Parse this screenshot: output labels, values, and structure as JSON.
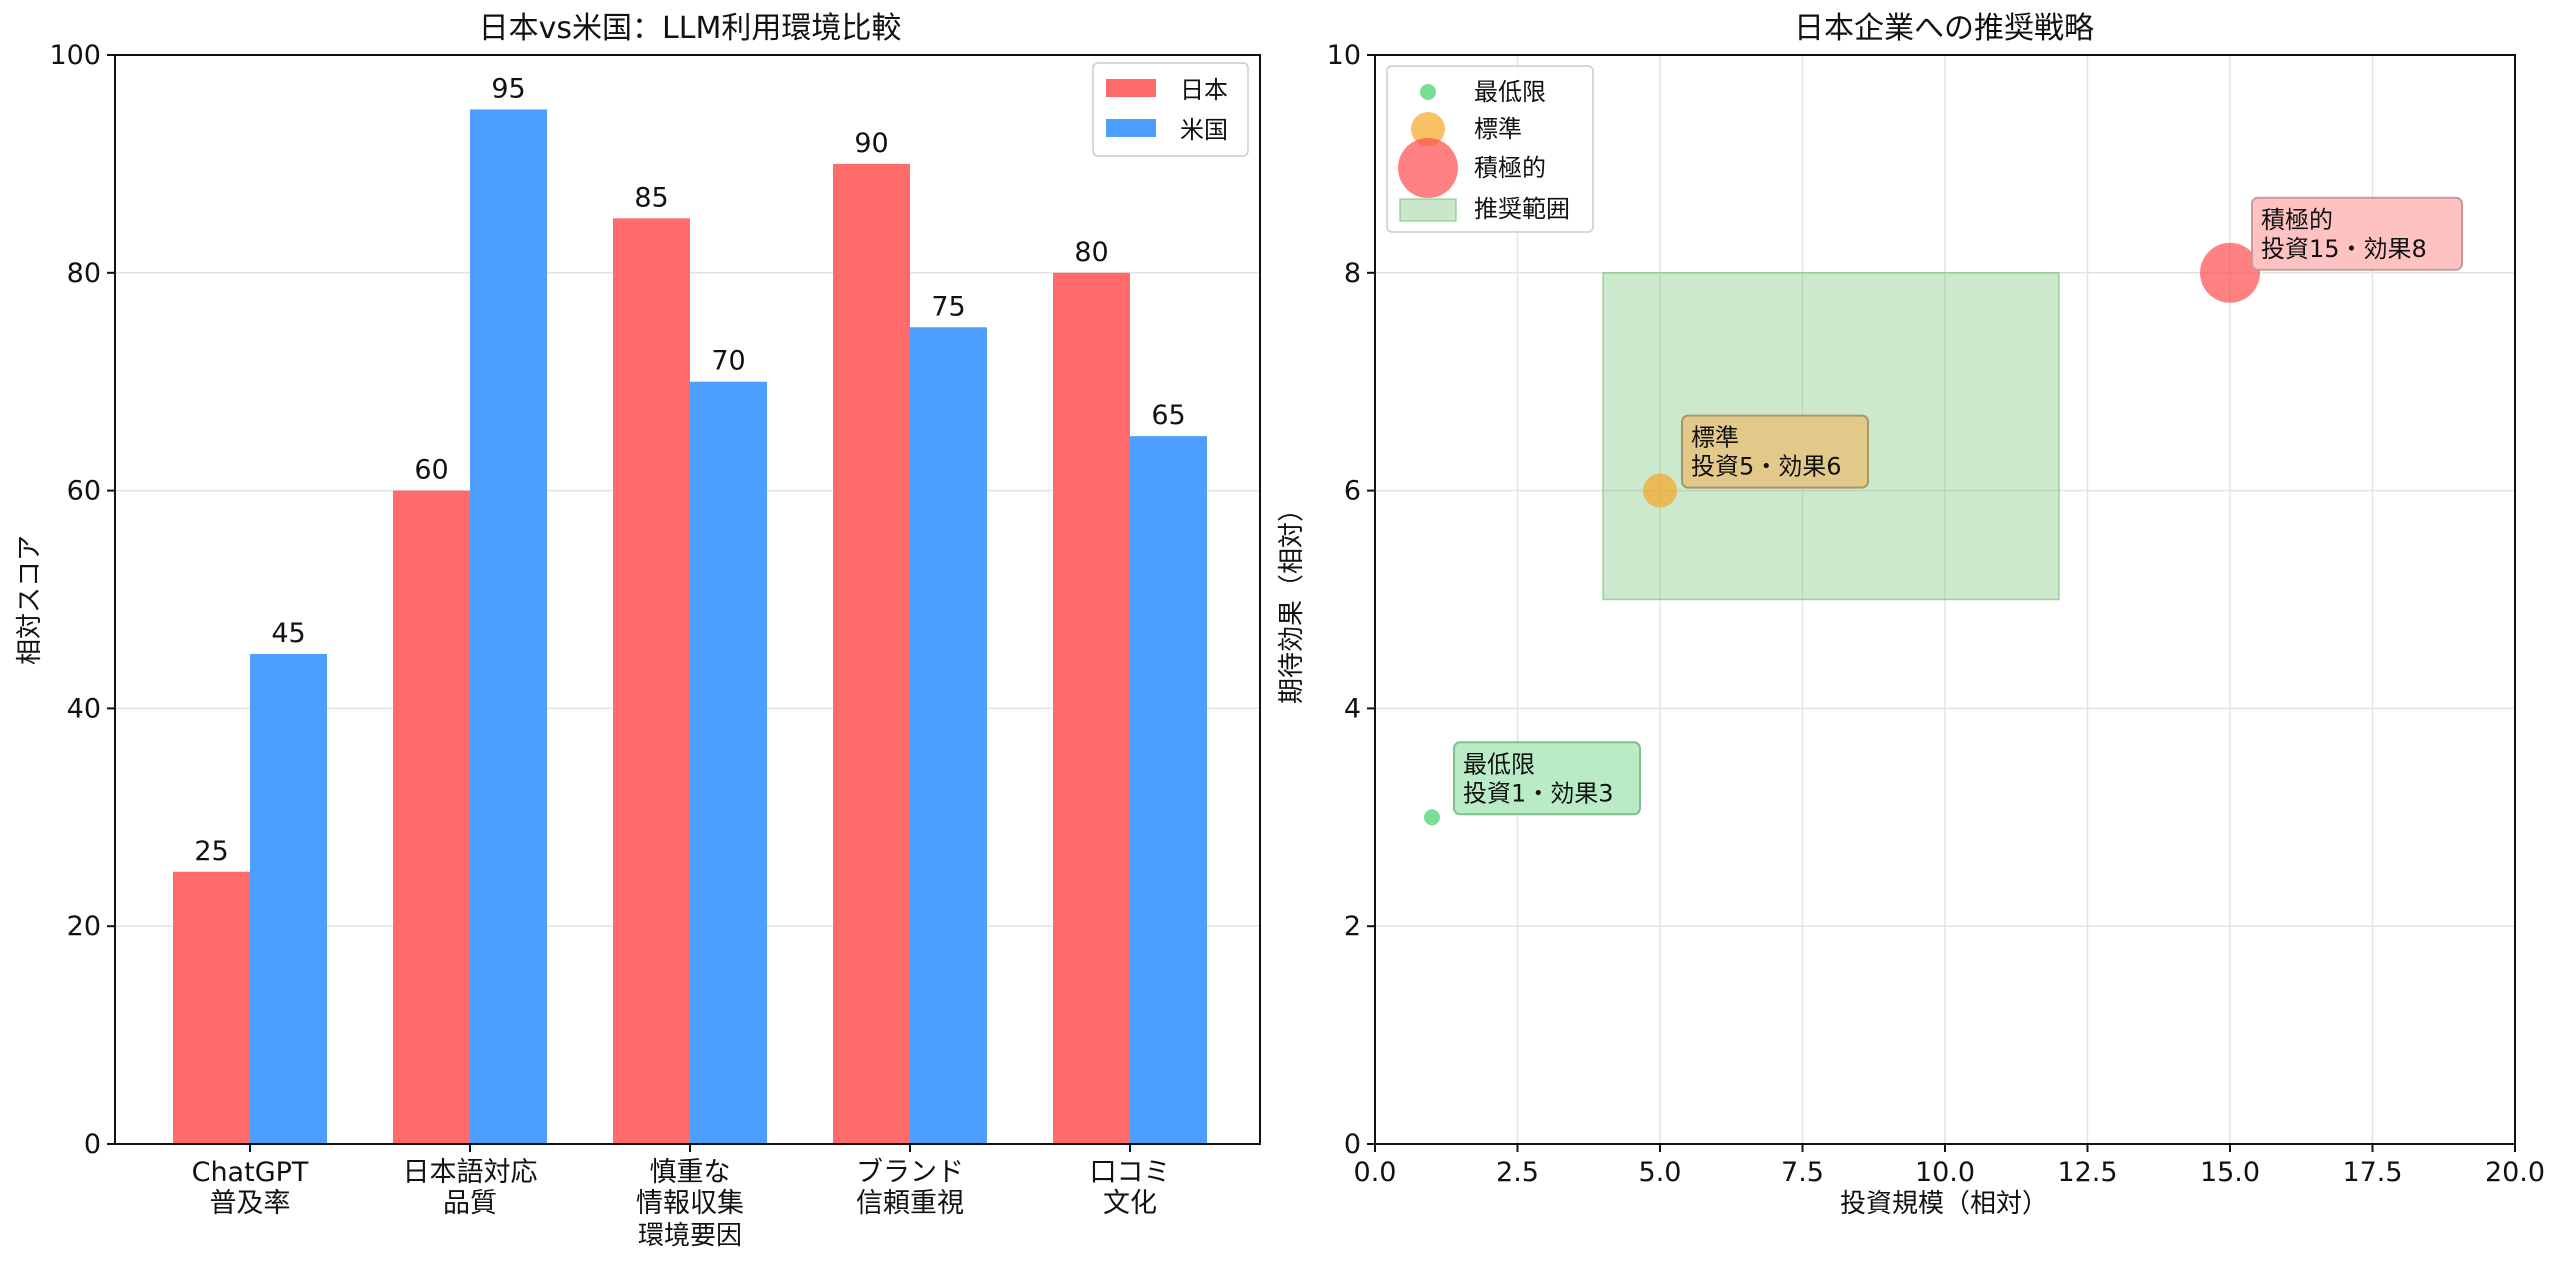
{
  "colors": {
    "japan": "#ff6b6b",
    "usa": "#4d9fff",
    "minimal": "#3ecf6a",
    "standard": "#f5a623",
    "aggressive": "#ff4b4b",
    "range": "#7cc47c"
  },
  "chart_data": [
    {
      "type": "bar",
      "title": "日本vs米国：LLM利用環境比較",
      "xlabel": "環境要因",
      "ylabel": "相対スコア",
      "ylim": [
        0,
        100
      ],
      "yticks": [
        "0",
        "20",
        "40",
        "60",
        "80",
        "100"
      ],
      "grid": true,
      "legend_position": "top-right",
      "categories": [
        [
          "ChatGPT",
          "普及率"
        ],
        [
          "日本語対応",
          "品質"
        ],
        [
          "慎重な",
          "情報収集"
        ],
        [
          "ブランド",
          "信頼重視"
        ],
        [
          "口コミ",
          "文化"
        ]
      ],
      "series": [
        {
          "name": "日本",
          "values": [
            25,
            60,
            85,
            90,
            80
          ],
          "color": "#ff6b6b"
        },
        {
          "name": "米国",
          "values": [
            45,
            95,
            70,
            75,
            65
          ],
          "color": "#4d9fff"
        }
      ]
    },
    {
      "type": "scatter",
      "title": "日本企業への推奨戦略",
      "xlabel": "投資規模（相対）",
      "ylabel": "期待効果（相対）",
      "xlim": [
        0,
        20
      ],
      "ylim": [
        0,
        10
      ],
      "xticks": [
        "0.0",
        "2.5",
        "5.0",
        "7.5",
        "10.0",
        "12.5",
        "15.0",
        "17.5",
        "20.0"
      ],
      "yticks": [
        "0",
        "2",
        "4",
        "6",
        "8",
        "10"
      ],
      "grid": true,
      "legend_position": "top-left",
      "points": [
        {
          "name": "最低限",
          "x": 1,
          "y": 3,
          "size": "small",
          "color": "#3ecf6a",
          "label_lines": [
            "最低限",
            "投資1・効果3"
          ]
        },
        {
          "name": "標準",
          "x": 5,
          "y": 6,
          "size": "medium",
          "color": "#f5a623",
          "label_lines": [
            "標準",
            "投資5・効果6"
          ]
        },
        {
          "name": "積極的",
          "x": 15,
          "y": 8,
          "size": "large",
          "color": "#ff4b4b",
          "label_lines": [
            "積極的",
            "投資15・効果8"
          ]
        }
      ],
      "recommended_range": {
        "name": "推奨範囲",
        "x": [
          4,
          12
        ],
        "y": [
          5,
          8
        ],
        "color": "#7cc47c"
      }
    }
  ]
}
